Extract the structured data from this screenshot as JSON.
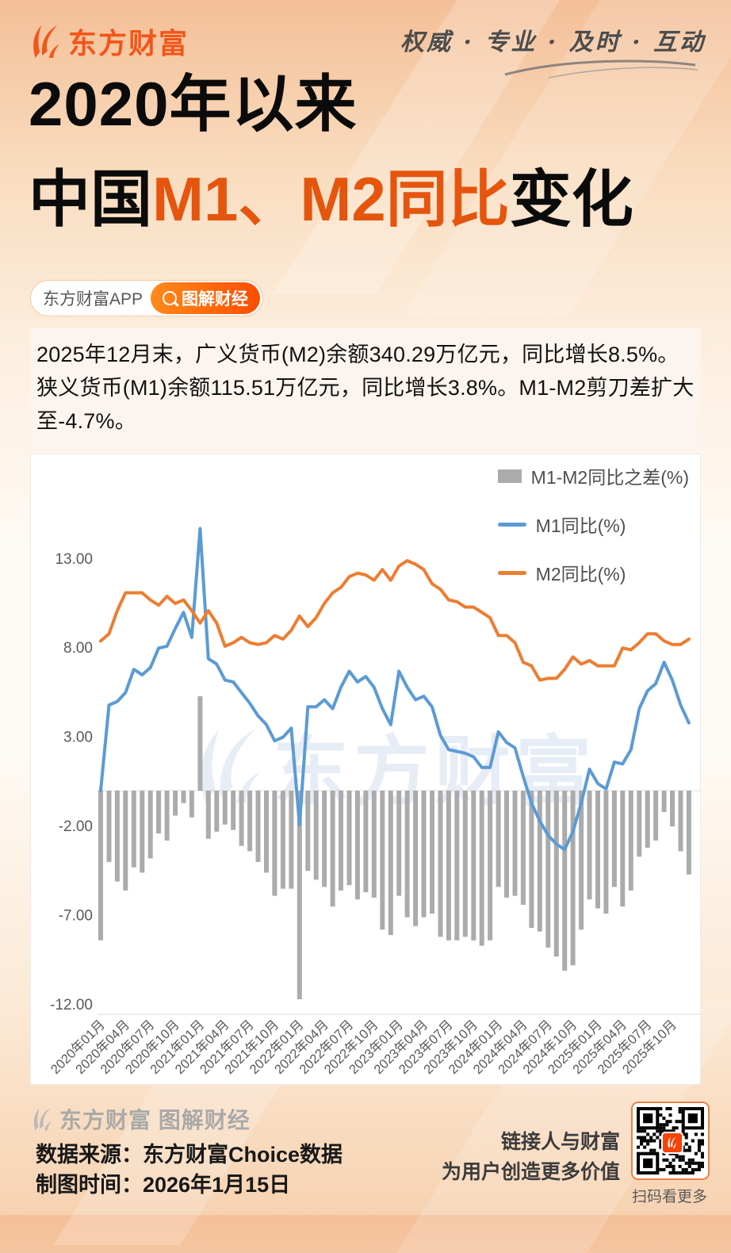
{
  "header": {
    "logo_text": "东方财富",
    "slogan": "权威 · 专业 · 及时 · 互动"
  },
  "title": {
    "line1": "2020年以来",
    "line2_prefix": "中国",
    "line2_highlight": "M1、M2同比",
    "line2_suffix": "变化"
  },
  "badge": {
    "app_label": "东方财富APP",
    "pill_label": "图解财经"
  },
  "summary": {
    "text": "2025年12月末，广义货币(M2)余额340.29万亿元，同比增长8.5%。狭义货币(M1)余额115.51万亿元，同比增长3.8%。M1-M2剪刀差扩大至-4.7%。"
  },
  "watermark": {
    "text": "东方财富"
  },
  "chart_data": {
    "type": "bar",
    "title": "",
    "xlabel": "",
    "ylabel": "",
    "grid": false,
    "legend_position": "top-right",
    "ylim": [
      -13.5,
      16
    ],
    "tick_every": 3,
    "x_tick_labels": [
      "2020年01月",
      "2020年04月",
      "2020年07月",
      "2020年10月",
      "2021年01月",
      "2021年04月",
      "2021年07月",
      "2021年10月",
      "2022年01月",
      "2022年04月",
      "2022年07月",
      "2022年10月",
      "2023年01月",
      "2023年04月",
      "2023年07月",
      "2023年10月",
      "2024年01月",
      "2024年04月",
      "2024年07月",
      "2024年10月",
      "2025年01月",
      "2025年04月",
      "2025年07月",
      "2025年10月"
    ],
    "y_ticks": [
      {
        "label": "13.00",
        "value": 13
      },
      {
        "label": "8.00",
        "value": 8
      },
      {
        "label": "3.00",
        "value": 3
      },
      {
        "label": "-2.00",
        "value": -2
      },
      {
        "label": "-7.00",
        "value": -7
      },
      {
        "label": "-12.00",
        "value": -12
      }
    ],
    "series": [
      {
        "name": "M1-M2同比之差(%)",
        "type": "bar",
        "color": "#ABABAB",
        "values": [
          -8.4,
          -4.0,
          -5.1,
          -5.6,
          -4.3,
          -4.6,
          -3.8,
          -2.4,
          -2.8,
          -1.4,
          -0.7,
          -1.5,
          5.3,
          -2.7,
          -2.3,
          -1.9,
          -2.2,
          -3.1,
          -3.4,
          -4.0,
          -4.6,
          -5.9,
          -5.5,
          -5.5,
          -11.7,
          -4.5,
          -5.0,
          -5.4,
          -6.5,
          -5.6,
          -5.3,
          -6.1,
          -5.7,
          -6.0,
          -7.8,
          -8.1,
          -5.9,
          -7.1,
          -7.6,
          -7.1,
          -6.9,
          -8.2,
          -8.4,
          -8.4,
          -8.2,
          -8.4,
          -8.7,
          -8.4,
          -5.4,
          -6.0,
          -5.9,
          -6.4,
          -7.7,
          -7.9,
          -8.8,
          -9.3,
          -10.1,
          -9.8,
          -7.8,
          -6.1,
          -6.6,
          -6.9,
          -5.4,
          -6.5,
          -5.6,
          -3.7,
          -3.2,
          -2.8,
          -1.2,
          -2.0,
          -3.4,
          -4.7
        ]
      },
      {
        "name": "M1同比(%)",
        "type": "line",
        "color": "#5B9BD5",
        "values": [
          0.0,
          4.8,
          5.0,
          5.5,
          6.8,
          6.5,
          6.9,
          8.0,
          8.1,
          9.1,
          10.0,
          8.6,
          14.7,
          7.4,
          7.1,
          6.2,
          6.1,
          5.5,
          4.9,
          4.2,
          3.7,
          2.8,
          3.0,
          3.5,
          -1.9,
          4.7,
          4.7,
          5.1,
          4.6,
          5.8,
          6.7,
          6.1,
          6.4,
          5.8,
          4.6,
          3.7,
          6.7,
          5.8,
          5.1,
          5.3,
          4.7,
          3.1,
          2.3,
          2.2,
          2.1,
          1.9,
          1.3,
          1.3,
          3.3,
          2.7,
          2.4,
          0.8,
          -0.7,
          -1.7,
          -2.5,
          -3.0,
          -3.3,
          -2.3,
          -0.7,
          1.2,
          0.4,
          0.1,
          1.6,
          1.5,
          2.3,
          4.6,
          5.6,
          6.0,
          7.2,
          6.2,
          4.8,
          3.8
        ]
      },
      {
        "name": "M2同比(%)",
        "type": "line",
        "color": "#ED7D31",
        "values": [
          8.4,
          8.8,
          10.1,
          11.1,
          11.1,
          11.1,
          10.7,
          10.4,
          10.9,
          10.5,
          10.7,
          10.1,
          9.4,
          10.1,
          9.4,
          8.1,
          8.3,
          8.6,
          8.3,
          8.2,
          8.3,
          8.7,
          8.5,
          9.0,
          9.8,
          9.2,
          9.7,
          10.5,
          11.1,
          11.4,
          12.0,
          12.2,
          12.1,
          11.8,
          12.4,
          11.8,
          12.6,
          12.9,
          12.7,
          12.4,
          11.6,
          11.3,
          10.7,
          10.6,
          10.3,
          10.3,
          10.0,
          9.7,
          8.7,
          8.7,
          8.3,
          7.2,
          7.0,
          6.2,
          6.3,
          6.3,
          6.8,
          7.5,
          7.1,
          7.3,
          7.0,
          7.0,
          7.0,
          8.0,
          7.9,
          8.3,
          8.8,
          8.8,
          8.4,
          8.2,
          8.2,
          8.5
        ]
      }
    ]
  },
  "footer": {
    "brand_watermark": "东方财富 图解财经",
    "source_label": "数据来源：东方财富Choice数据",
    "date_label": "制图时间：2026年1月15日",
    "tagline_line1": "链接人与财富",
    "tagline_line2": "为用户创造更多价值",
    "qr_caption": "扫码看更多"
  }
}
